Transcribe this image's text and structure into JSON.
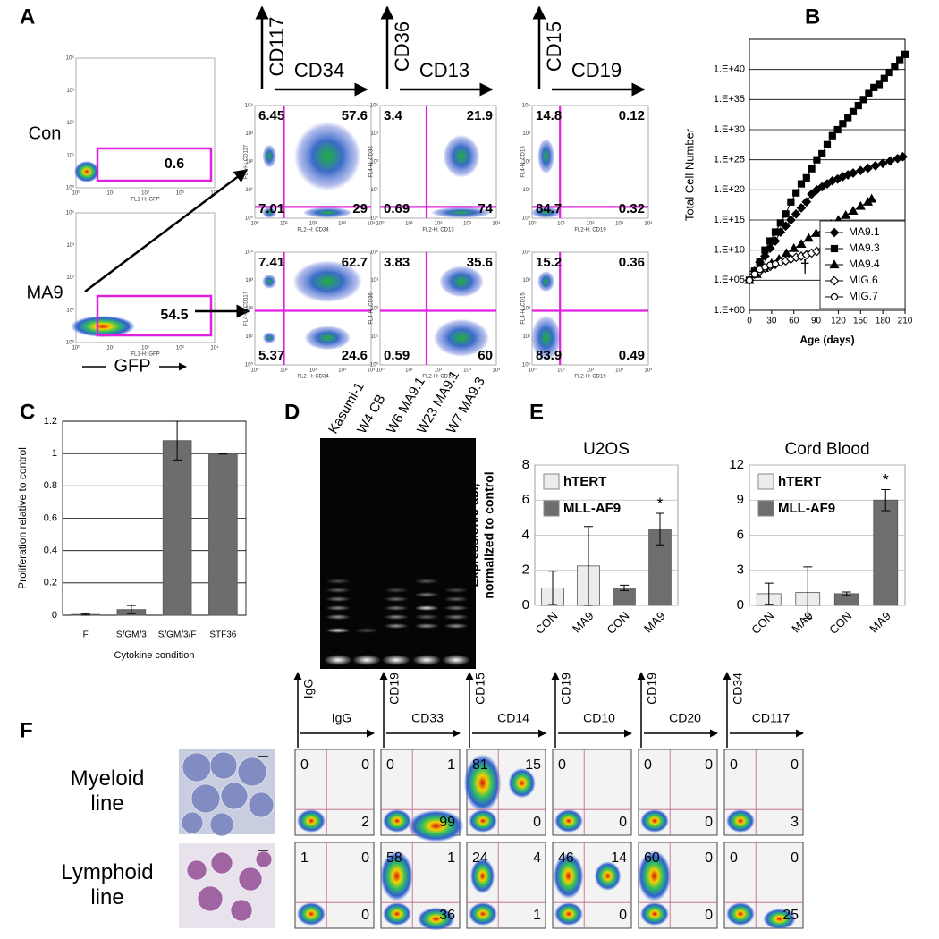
{
  "panel_labels": [
    "A",
    "B",
    "C",
    "D",
    "E",
    "F"
  ],
  "panel_a": {
    "rows": [
      "Con",
      "MA9"
    ],
    "gfp_gates": [
      0.6,
      54.5
    ],
    "gfp_axis": "FL1-H: GFP",
    "gfp_label": "GFP",
    "flow_ticks": [
      "10⁰",
      "10¹",
      "10²",
      "10³",
      "10⁴"
    ],
    "columns": [
      {
        "y": "CD117",
        "x": "CD34",
        "y_axis": "FL4-H: CD117",
        "x_axis": "FL2-H: CD34",
        "quadrants": [
          [
            6.45,
            57.6,
            7.01,
            29
          ],
          [
            7.41,
            62.7,
            5.37,
            24.6
          ]
        ]
      },
      {
        "y": "CD36",
        "x": "CD13",
        "y_axis": "FL4-H: CD36",
        "x_axis": "FL2-H: CD13",
        "quadrants": [
          [
            3.4,
            21.9,
            0.69,
            74
          ],
          [
            3.83,
            35.6,
            0.59,
            60
          ]
        ]
      },
      {
        "y": "CD15",
        "x": "CD19",
        "y_axis": "FL4-H: CD15",
        "x_axis": "FL2-H: CD19",
        "quadrants": [
          [
            14.8,
            0.12,
            84.7,
            0.32
          ],
          [
            15.2,
            0.36,
            83.9,
            0.49
          ]
        ]
      }
    ]
  },
  "chart_data": [
    {
      "type": "line",
      "ylabel": "Total Cell Number",
      "xlabel": "Age (days)",
      "xlim": [
        0,
        210
      ],
      "xticks": [
        0,
        30,
        60,
        90,
        120,
        150,
        180,
        210
      ],
      "ylim": [
        1,
        1e+45
      ],
      "log_y": true,
      "grid": true,
      "legend": "lower right",
      "annotation": "†",
      "yticks": [
        {
          "value": 1,
          "label": "1.E+00"
        },
        {
          "value": 100000.0,
          "label": "1.E+05"
        },
        {
          "value": 10000000000.0,
          "label": "1.E+10"
        },
        {
          "value": 1000000000000000.0,
          "label": "1.E+15"
        },
        {
          "value": 1e+20,
          "label": "1.E+20"
        },
        {
          "value": 1e+25,
          "label": "1.E+25"
        },
        {
          "value": 1e+30,
          "label": "1.E+30"
        },
        {
          "value": 1e+35,
          "label": "1.E+35"
        },
        {
          "value": 1e+40,
          "label": "1.E+40"
        }
      ],
      "series": [
        {
          "name": "MA9.1",
          "marker": "diamond",
          "filled": true,
          "color": "#000000",
          "x": [
            0,
            7,
            14,
            21,
            28,
            35,
            42,
            49,
            56,
            63,
            70,
            77,
            84,
            91,
            98,
            105,
            112,
            119,
            126,
            133,
            140,
            150,
            160,
            170,
            180,
            190,
            200,
            207
          ],
          "values": [
            100000.0,
            3200000.0,
            100000000.0,
            1000000000.0,
            20000000000.0,
            320000000000.0,
            10000000000000.0,
            100000000000000.0,
            1000000000000000.0,
            1e+16,
            1e+17,
            1e+18,
            2e+19,
            1e+20,
            3.2e+20,
            1e+21,
            3.2e+21,
            6.3e+21,
            1.6e+22,
            3.2e+22,
            6.3e+22,
            1.6e+23,
            4e+23,
            1e+24,
            2.5e+24,
            6.3e+24,
            1.6e+25,
            3.2e+25
          ]
        },
        {
          "name": "MA9.3",
          "marker": "square",
          "filled": true,
          "color": "#000000",
          "x": [
            0,
            7,
            14,
            21,
            28,
            35,
            42,
            49,
            56,
            63,
            70,
            77,
            84,
            91,
            98,
            105,
            112,
            119,
            126,
            133,
            140,
            147,
            154,
            161,
            168,
            175,
            182,
            189,
            196,
            203,
            210
          ],
          "values": [
            100000.0,
            3200000.0,
            100000000.0,
            10000000000.0,
            320000000000.0,
            10000000000000.0,
            320000000000000.0,
            1e+16,
            1e+18,
            3.2e+19,
            1e+21,
            1e+22,
            3.2e+23,
            1e+25,
            1e+26,
            3.2e+27,
            1e+29,
            1e+30,
            1e+31,
            1e+32,
            1e+33,
            1e+34,
            1e+35,
            1e+36,
            1e+37,
            3.2e+37,
            3.2e+38,
            3.2e+39,
            3.2e+40,
            3.2e+41,
            3.2e+42
          ]
        },
        {
          "name": "MA9.4",
          "marker": "triangle",
          "filled": true,
          "color": "#000000",
          "x": [
            0,
            10,
            20,
            30,
            40,
            50,
            60,
            70,
            80,
            90,
            100,
            110,
            120,
            130,
            140,
            150,
            160,
            165
          ],
          "values": [
            100000.0,
            1000000.0,
            10000000.0,
            63000000.0,
            320000000.0,
            3200000000.0,
            20000000000.0,
            100000000000.0,
            1000000000000.0,
            6300000000000.0,
            32000000000000.0,
            200000000000000.0,
            1000000000000000.0,
            6300000000000000.0,
            3.2e+16,
            2e+17,
            1e+18,
            3.2e+18
          ]
        },
        {
          "name": "MIG.6",
          "marker": "diamond",
          "filled": false,
          "color": "#000000",
          "x": [
            0,
            7,
            14,
            21,
            28,
            35,
            42,
            49,
            56,
            63,
            70,
            77,
            84,
            91,
            98
          ],
          "values": [
            100000.0,
            1000000.0,
            3200000.0,
            10000000.0,
            20000000.0,
            40000000.0,
            100000000.0,
            160000000.0,
            320000000.0,
            630000000.0,
            1000000000.0,
            1600000000.0,
            3200000000.0,
            6300000000.0,
            10000000000.0
          ]
        },
        {
          "name": "MIG.7",
          "marker": "circle",
          "filled": false,
          "color": "#000000",
          "x": [
            0,
            7,
            14,
            21,
            28,
            35
          ],
          "values": [
            100000.0,
            1000000.0,
            6300000.0,
            16000000.0,
            32000000.0,
            50000000.0
          ]
        }
      ]
    },
    {
      "type": "bar",
      "ylabel": "Proliferation relative to control",
      "xlabel": "Cytokine condition",
      "categories": [
        "F",
        "S/GM/3",
        "S/GM/3/F",
        "STF36"
      ],
      "values": [
        0.005,
        0.035,
        1.08,
        1.0
      ],
      "errors": [
        0.005,
        0.025,
        0.12,
        0.003
      ],
      "color": "#6d6d6d",
      "ylim": [
        0,
        1.2
      ],
      "yticks": [
        0,
        0.2,
        0.4,
        0.6,
        0.8,
        1,
        1.2
      ],
      "grid": true
    },
    {
      "type": "bar",
      "title": "U2OS",
      "ylabel": "Expression/c-abl, normalized to control",
      "annotation": "*",
      "categories": [
        "CON",
        "MA9",
        "CON",
        "MA9"
      ],
      "ylim": [
        0,
        8
      ],
      "yticks": [
        0,
        2,
        4,
        6,
        8
      ],
      "grid": true,
      "series": [
        {
          "name": "hTERT",
          "color": "#ececec",
          "values": [
            1,
            2.25,
            null,
            null
          ],
          "errors": [
            0.95,
            2.25,
            null,
            null
          ]
        },
        {
          "name": "MLL-AF9",
          "color": "#6e6e6e",
          "values": [
            null,
            null,
            1,
            4.35
          ],
          "errors": [
            null,
            null,
            0.15,
            0.9
          ]
        }
      ]
    },
    {
      "type": "bar",
      "title": "Cord Blood",
      "annotation": "*",
      "categories": [
        "CON",
        "MA9",
        "CON",
        "MA9"
      ],
      "ylim": [
        0,
        12
      ],
      "yticks": [
        0,
        3,
        6,
        9,
        12
      ],
      "grid": true,
      "series": [
        {
          "name": "hTERT",
          "color": "#ececec",
          "values": [
            1,
            1.1,
            null,
            null
          ],
          "errors": [
            0.9,
            2.2,
            null,
            null
          ]
        },
        {
          "name": "MLL-AF9",
          "color": "#6e6e6e",
          "values": [
            null,
            null,
            1,
            9
          ],
          "errors": [
            null,
            null,
            0.15,
            0.9
          ]
        }
      ]
    }
  ],
  "panel_d": {
    "lanes": [
      "Kasumi-1",
      "W4 CB",
      "W6 MA9.1",
      "W23 MA9.1",
      "W7 MA9.3"
    ]
  },
  "panel_f": {
    "rows": [
      "Myeloid line",
      "Lymphoid line"
    ],
    "columns": [
      {
        "y": "IgG",
        "x": "IgG",
        "values": [
          [
            0,
            0,
            2
          ],
          [
            1,
            0,
            0
          ]
        ]
      },
      {
        "y": "CD19",
        "x": "CD33",
        "values": [
          [
            0,
            1,
            99
          ],
          [
            58,
            1,
            36
          ]
        ]
      },
      {
        "y": "CD15",
        "x": "CD14",
        "values": [
          [
            81,
            15,
            0
          ],
          [
            24,
            4,
            1
          ]
        ]
      },
      {
        "y": "CD19",
        "x": "CD10",
        "values": [
          [
            0,
            null,
            0
          ],
          [
            46,
            14,
            0
          ]
        ]
      },
      {
        "y": "CD19",
        "x": "CD20",
        "values": [
          [
            0,
            0,
            0
          ],
          [
            60,
            0,
            0
          ]
        ]
      },
      {
        "y": "CD34",
        "x": "CD117",
        "values": [
          [
            0,
            0,
            3
          ],
          [
            0,
            0,
            25
          ]
        ]
      }
    ]
  }
}
